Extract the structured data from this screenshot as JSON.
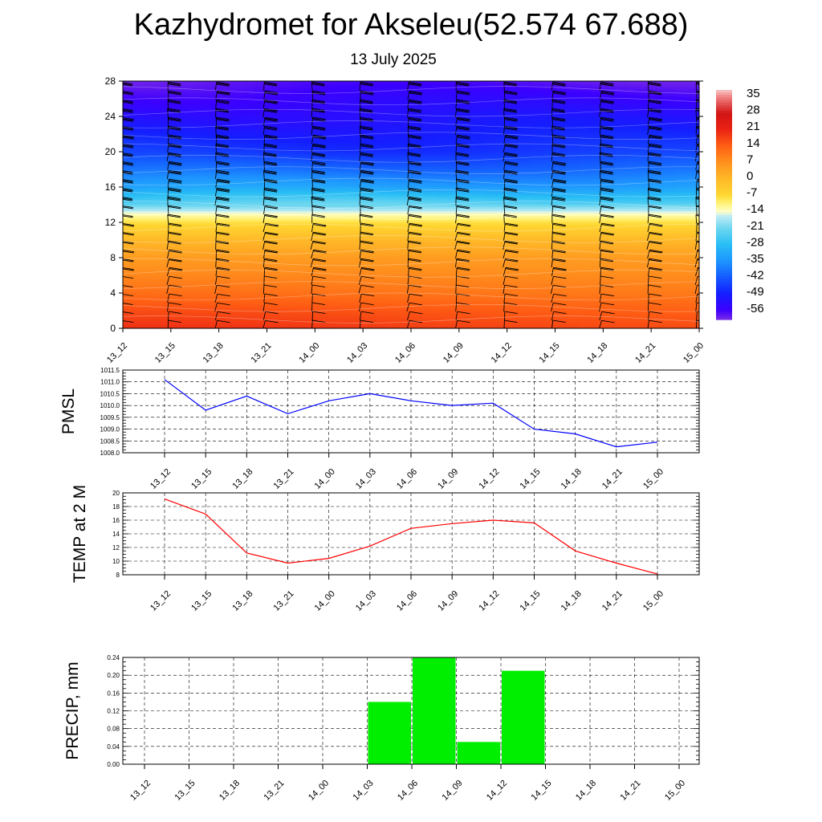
{
  "page": {
    "title": "Kazhydromet for Akseleu(52.574 67.688)",
    "subtitle": "13 July 2025"
  },
  "colors": {
    "pmsl_line": "#0000ff",
    "temp_line": "#ff0000",
    "precip_bar": "#00ee00",
    "barb": "#000000"
  },
  "chart_data": [
    {
      "type": "heatmap",
      "name": "temperature-wind-cross-section",
      "x_categories": [
        "13_12",
        "13_15",
        "13_18",
        "13_21",
        "14_00",
        "14_03",
        "14_06",
        "14_09",
        "14_12",
        "14_15",
        "14_18",
        "14_21",
        "15_00"
      ],
      "yticks": [
        0,
        4,
        8,
        12,
        16,
        20,
        24,
        28
      ],
      "ylim": [
        0,
        28
      ],
      "colorbar_labels": [
        "35",
        "28",
        "21",
        "14",
        "7",
        "0",
        "-7",
        "-14",
        "-21",
        "-28",
        "-35",
        "-42",
        "-49",
        "-56"
      ],
      "colorbar_range": [
        -60,
        38
      ],
      "temperature_profile": [
        {
          "level": 0,
          "value": 18
        },
        {
          "level": 2,
          "value": 15
        },
        {
          "level": 4,
          "value": 11
        },
        {
          "level": 6,
          "value": 8
        },
        {
          "level": 8,
          "value": 5
        },
        {
          "level": 10,
          "value": 0
        },
        {
          "level": 12,
          "value": -8
        },
        {
          "level": 13,
          "value": -14
        },
        {
          "level": 14,
          "value": -22
        },
        {
          "level": 16,
          "value": -33
        },
        {
          "level": 18,
          "value": -40
        },
        {
          "level": 20,
          "value": -46
        },
        {
          "level": 24,
          "value": -52
        },
        {
          "level": 28,
          "value": -58
        }
      ],
      "wind_barbs": "wind barbs at every level and time step"
    },
    {
      "type": "line",
      "name": "pmsl",
      "ylabel": "PMSL",
      "categories": [
        "13_12",
        "13_15",
        "13_18",
        "13_21",
        "14_00",
        "14_03",
        "14_06",
        "14_09",
        "14_12",
        "14_15",
        "14_18",
        "14_21",
        "15_00"
      ],
      "values": [
        1011.1,
        1009.8,
        1010.4,
        1009.65,
        1010.2,
        1010.5,
        1010.2,
        1010.0,
        1010.1,
        1009.0,
        1008.8,
        1008.25,
        1008.45
      ],
      "ylim": [
        1008.0,
        1011.5
      ],
      "yticks": [
        "1008.0",
        "1008.5",
        "1009.0",
        "1009.5",
        "1010.0",
        "1010.5",
        "1011.0",
        "1011.5"
      ],
      "grid": true
    },
    {
      "type": "line",
      "name": "temperature-2m",
      "ylabel": "TEMP at 2 M",
      "categories": [
        "13_12",
        "13_15",
        "13_18",
        "13_21",
        "14_00",
        "14_03",
        "14_06",
        "14_09",
        "14_12",
        "14_15",
        "14_18",
        "14_21",
        "15_00"
      ],
      "values": [
        19.1,
        16.9,
        11.2,
        9.7,
        10.4,
        12.2,
        14.8,
        15.5,
        16.0,
        15.6,
        11.5,
        9.7,
        8.1
      ],
      "ylim": [
        8,
        20
      ],
      "yticks": [
        "8",
        "10",
        "12",
        "14",
        "16",
        "18",
        "20"
      ],
      "grid": true
    },
    {
      "type": "bar",
      "name": "precipitation",
      "ylabel": "PRECIP, mm",
      "categories": [
        "13_12",
        "13_15",
        "13_18",
        "13_21",
        "14_00",
        "14_03",
        "14_06",
        "14_09",
        "14_12",
        "14_15",
        "14_18",
        "14_21",
        "15_00"
      ],
      "values": [
        0,
        0,
        0,
        0,
        0,
        0.14,
        0.24,
        0.05,
        0.21,
        0,
        0,
        0,
        0
      ],
      "ylim": [
        0,
        0.24
      ],
      "yticks": [
        "0.00",
        "0.04",
        "0.08",
        "0.12",
        "0.16",
        "0.20",
        "0.24"
      ],
      "grid": true
    }
  ]
}
